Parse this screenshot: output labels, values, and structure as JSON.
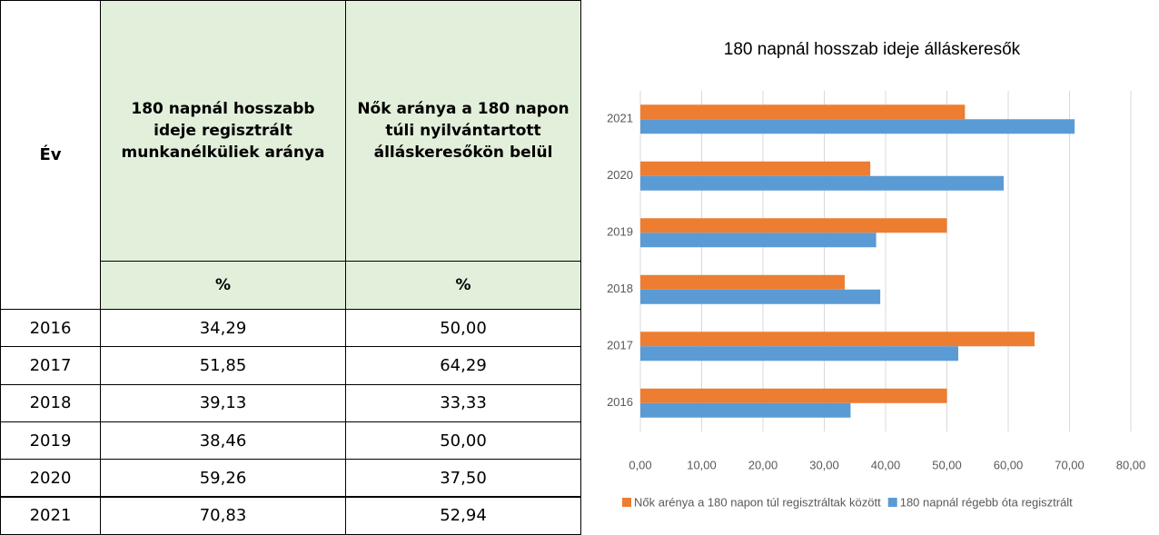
{
  "table": {
    "header": {
      "year": "Év",
      "col1": "180 napnál hosszabb ideje regisztrált munkanélküliek aránya",
      "col2": "Nők aránya a 180 napon túli nyilvántartott álláskeresőkön belül",
      "unit1": "%",
      "unit2": "%"
    },
    "rows": [
      [
        "2016",
        "34,29",
        "50,00"
      ],
      [
        "2017",
        "51,85",
        "64,29"
      ],
      [
        "2018",
        "39,13",
        "33,33"
      ],
      [
        "2019",
        "38,46",
        "50,00"
      ],
      [
        "2020",
        "59,26",
        "37,50"
      ],
      [
        "2021",
        "70,83",
        "52,94"
      ]
    ]
  },
  "chart_data": {
    "type": "hbar",
    "title": "180 napnál hosszab ideje álláskeresők",
    "categories": [
      "2016",
      "2017",
      "2018",
      "2019",
      "2020",
      "2021"
    ],
    "series": [
      {
        "name": "Nők arénya a 180 napon túl regisztráltak között",
        "color": "#ed7d31",
        "values": [
          50,
          64.29,
          33.33,
          50,
          37.5,
          52.94
        ]
      },
      {
        "name": "180 napnál régebb óta regisztrált",
        "color": "#5b9bd5",
        "values": [
          34.29,
          51.85,
          39.13,
          38.46,
          59.26,
          70.83
        ]
      }
    ],
    "xlim": [
      0,
      80
    ],
    "xticks": [
      {
        "value": 0,
        "label": "0,00"
      },
      {
        "value": 10,
        "label": "10,00"
      },
      {
        "value": 20,
        "label": "20,00"
      },
      {
        "value": 30,
        "label": "30,00"
      },
      {
        "value": 40,
        "label": "40,00"
      },
      {
        "value": 50,
        "label": "50,00"
      },
      {
        "value": 60,
        "label": "60,00"
      },
      {
        "value": 70,
        "label": "70,00"
      },
      {
        "value": 80,
        "label": "80,00"
      }
    ],
    "grid": true,
    "legend": "bottom"
  }
}
